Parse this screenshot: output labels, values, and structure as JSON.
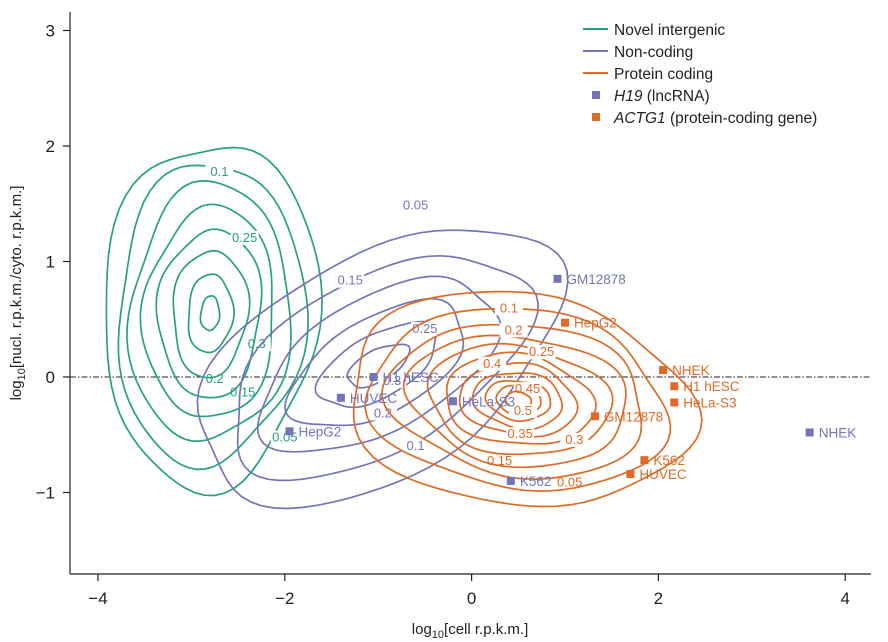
{
  "chart_data": {
    "type": "contour",
    "xlabel_base": "log",
    "xlabel_sub": "10",
    "xlabel_rest": "[cell r.p.k.m.]",
    "ylabel_base": "log",
    "ylabel_sub": "10",
    "ylabel_rest": "[nucl. r.p.k.m./cyto. r.p.k.m.]",
    "xlim": [
      -4.5,
      4.5
    ],
    "ylim": [
      -1.8,
      3.3
    ],
    "xticks": [
      -4,
      -2,
      0,
      2,
      4
    ],
    "xtick_labels": [
      "−4",
      "−2",
      "0",
      "2",
      "4"
    ],
    "yticks": [
      -1,
      0,
      1,
      2,
      3
    ],
    "ytick_labels": [
      "−1",
      "0",
      "1",
      "2",
      "3"
    ],
    "reference_line": {
      "y": 0,
      "style": "dash-dot"
    },
    "colors": {
      "novel": "#26a27d",
      "noncoding": "#7375b8",
      "protein": "#de6a26",
      "text": "#222222"
    },
    "legend": {
      "placement": "top-right",
      "entries": [
        {
          "key": "novel",
          "marker": "line",
          "label": "Novel intergenic"
        },
        {
          "key": "noncoding",
          "marker": "line",
          "label": "Non-coding"
        },
        {
          "key": "protein",
          "marker": "line",
          "label": "Protein coding"
        },
        {
          "key": "noncoding",
          "marker": "square",
          "label_italic": "H19",
          "label_rest": " (lncRNA)"
        },
        {
          "key": "protein",
          "marker": "square",
          "label_italic": "ACTG1",
          "label_rest": " (protein-coding gene)"
        }
      ]
    },
    "series": [
      {
        "name": "Novel intergenic",
        "color_key": "novel",
        "center": [
          -2.8,
          0.55
        ],
        "tilt_deg": -6,
        "levels": [
          {
            "semi_axes": [
              1.15,
              1.5
            ],
            "label": "0.05",
            "label_pos": [
              -2.0,
              -0.56
            ]
          },
          {
            "semi_axes": [
              1.0,
              1.31
            ],
            "label": "0.15",
            "label_pos": [
              -2.45,
              -0.17
            ]
          },
          {
            "semi_axes": [
              0.86,
              1.12
            ],
            "label": "0.2",
            "label_pos": [
              -2.75,
              -0.05
            ]
          },
          {
            "semi_axes": [
              0.7,
              0.92
            ],
            "label": "0.3",
            "label_pos": [
              -2.3,
              0.25
            ]
          },
          {
            "semi_axes": [
              0.55,
              0.73
            ],
            "label": "0.25",
            "label_pos": [
              -2.43,
              1.17
            ]
          },
          {
            "semi_axes": [
              0.4,
              0.55
            ],
            "label": "0.1",
            "label_pos": [
              -2.7,
              1.74
            ]
          },
          {
            "semi_axes": [
              0.24,
              0.34
            ],
            "label": "",
            "label_pos": null
          },
          {
            "semi_axes": [
              0.1,
              0.15
            ],
            "label": "",
            "label_pos": null
          }
        ]
      },
      {
        "name": "Non-coding",
        "color_key": "noncoding",
        "center": [
          -1.0,
          0.1
        ],
        "tilt_deg": 22,
        "levels": [
          {
            "semi_axes": [
              2.05,
              1.0
            ],
            "label": "0.05",
            "label_pos": [
              -0.6,
              1.45
            ]
          },
          {
            "semi_axes": [
              1.7,
              0.78
            ],
            "label": "0.1",
            "label_pos": [
              -0.6,
              -0.63
            ]
          },
          {
            "semi_axes": [
              1.35,
              0.6
            ],
            "label": "0.15",
            "label_pos": [
              -1.3,
              0.8
            ]
          },
          {
            "semi_axes": [
              1.0,
              0.43
            ],
            "label": "0.2",
            "label_pos": [
              -0.95,
              -0.35
            ]
          },
          {
            "semi_axes": [
              0.68,
              0.28
            ],
            "label": "0.25",
            "label_pos": [
              -0.5,
              0.38
            ]
          },
          {
            "semi_axes": [
              0.35,
              0.14
            ],
            "label": "0.3",
            "label_pos": [
              -0.85,
              -0.07
            ]
          }
        ]
      },
      {
        "name": "Protein coding",
        "color_key": "protein",
        "center": [
          0.5,
          -0.2
        ],
        "tilt_deg": -5,
        "levels": [
          {
            "semi_axes": [
              1.85,
              0.92
            ],
            "label": "0.05",
            "label_pos": [
              1.05,
              -0.95
            ]
          },
          {
            "semi_axes": [
              1.6,
              0.78
            ],
            "label": "0.15",
            "label_pos": [
              0.3,
              -0.76
            ]
          },
          {
            "semi_axes": [
              1.38,
              0.66
            ],
            "label": "",
            "label_pos": null
          },
          {
            "semi_axes": [
              1.18,
              0.56
            ],
            "label": "0.1",
            "label_pos": [
              0.4,
              0.56
            ]
          },
          {
            "semi_axes": [
              0.98,
              0.47
            ],
            "label": "0.2",
            "label_pos": [
              0.45,
              0.37
            ]
          },
          {
            "semi_axes": [
              0.8,
              0.39
            ],
            "label": "0.25",
            "label_pos": [
              0.75,
              0.18
            ]
          },
          {
            "semi_axes": [
              0.63,
              0.31
            ],
            "label": "0.3",
            "label_pos": [
              1.1,
              -0.58
            ]
          },
          {
            "semi_axes": [
              0.48,
              0.24
            ],
            "label": "0.35",
            "label_pos": [
              0.52,
              -0.53
            ]
          },
          {
            "semi_axes": [
              0.35,
              0.17
            ],
            "label": "0.4",
            "label_pos": [
              0.22,
              0.08
            ]
          },
          {
            "semi_axes": [
              0.24,
              0.12
            ],
            "label": "0.45",
            "label_pos": [
              0.6,
              -0.14
            ]
          },
          {
            "semi_axes": [
              0.14,
              0.07
            ],
            "label": "0.5",
            "label_pos": [
              0.55,
              -0.33
            ]
          }
        ]
      }
    ],
    "points": [
      {
        "gene": "H19",
        "color_key": "noncoding",
        "label": "GM12878",
        "x": 0.92,
        "y": 0.85
      },
      {
        "gene": "H19",
        "color_key": "noncoding",
        "label": "H1 hESC",
        "x": -1.05,
        "y": 0.0
      },
      {
        "gene": "H19",
        "color_key": "noncoding",
        "label": "HUVEC",
        "x": -1.4,
        "y": -0.18
      },
      {
        "gene": "H19",
        "color_key": "noncoding",
        "label": "HeLa-S3",
        "x": -0.2,
        "y": -0.21
      },
      {
        "gene": "H19",
        "color_key": "noncoding",
        "label": "HepG2",
        "x": -1.95,
        "y": -0.47
      },
      {
        "gene": "H19",
        "color_key": "noncoding",
        "label": "K562",
        "x": 0.42,
        "y": -0.9
      },
      {
        "gene": "H19",
        "color_key": "noncoding",
        "label": "NHEK",
        "x": 3.62,
        "y": -0.48
      },
      {
        "gene": "ACTG1",
        "color_key": "protein",
        "label": "HepG2",
        "x": 1.0,
        "y": 0.47
      },
      {
        "gene": "ACTG1",
        "color_key": "protein",
        "label": "NHEK",
        "x": 2.05,
        "y": 0.06
      },
      {
        "gene": "ACTG1",
        "color_key": "protein",
        "label": "H1 hESC",
        "x": 2.17,
        "y": -0.08
      },
      {
        "gene": "ACTG1",
        "color_key": "protein",
        "label": "HeLa-S3",
        "x": 2.17,
        "y": -0.22
      },
      {
        "gene": "ACTG1",
        "color_key": "protein",
        "label": "GM12878",
        "x": 1.32,
        "y": -0.34
      },
      {
        "gene": "ACTG1",
        "color_key": "protein",
        "label": "K562",
        "x": 1.85,
        "y": -0.72
      },
      {
        "gene": "ACTG1",
        "color_key": "protein",
        "label": "HUVEC",
        "x": 1.7,
        "y": -0.84
      }
    ]
  }
}
